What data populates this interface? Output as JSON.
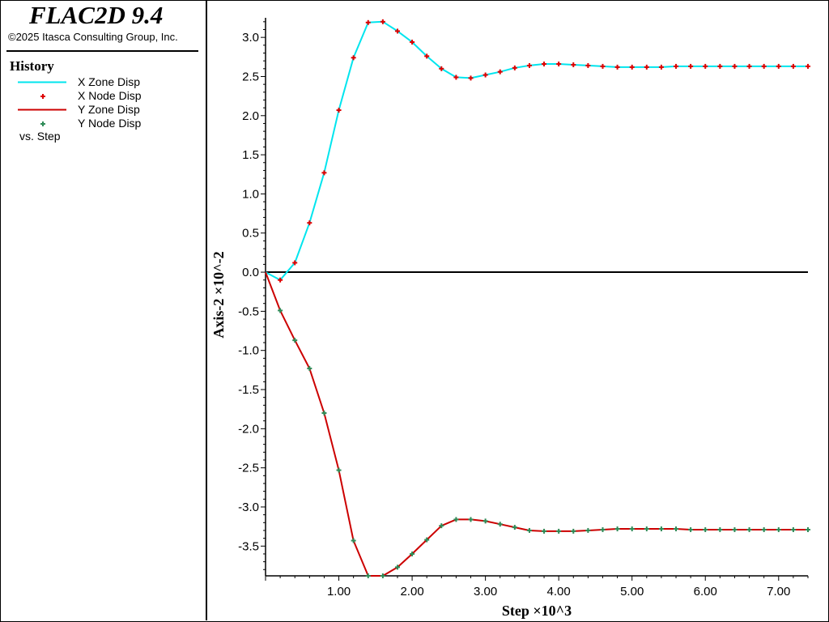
{
  "app": {
    "title": "FLAC2D 9.4",
    "copyright": "©2025 Itasca Consulting Group, Inc."
  },
  "legend": {
    "title": "History",
    "items": [
      {
        "label": "X Zone Disp",
        "style": "line",
        "color": "#00e5ee"
      },
      {
        "label": "X Node Disp",
        "style": "marker",
        "color": "#dd0000"
      },
      {
        "label": "Y Zone Disp",
        "style": "line",
        "color": "#cc0000"
      },
      {
        "label": "Y Node Disp",
        "style": "marker",
        "color": "#2e8b57"
      }
    ],
    "footer": "vs. Step"
  },
  "chart_data": {
    "type": "line",
    "xlabel": "Step ×10^3",
    "ylabel": "Axis-2 ×10^-2",
    "xlim": [
      0,
      7.4
    ],
    "ylim": [
      -3.88,
      3.25
    ],
    "xticks": [
      "1.00",
      "2.00",
      "3.00",
      "4.00",
      "5.00",
      "6.00",
      "7.00"
    ],
    "yticks": [
      "3.0",
      "2.5",
      "2.0",
      "1.5",
      "1.0",
      "0.5",
      "0.0",
      "-0.5",
      "-1.0",
      "-1.5",
      "-2.0",
      "-2.5",
      "-3.0",
      "-3.5"
    ],
    "grid": false,
    "legend_position": "left-panel",
    "x": [
      0,
      0.2,
      0.4,
      0.6,
      0.8,
      1.0,
      1.2,
      1.4,
      1.6,
      1.8,
      2.0,
      2.2,
      2.4,
      2.6,
      2.8,
      3.0,
      3.2,
      3.4,
      3.6,
      3.8,
      4.0,
      4.2,
      4.4,
      4.6,
      4.8,
      5.0,
      5.2,
      5.4,
      5.6,
      5.8,
      6.0,
      6.2,
      6.4,
      6.6,
      6.8,
      7.0,
      7.2,
      7.4
    ],
    "series": [
      {
        "name": "X Zone Disp",
        "kind": "line",
        "color": "#00e5ee",
        "values": [
          0.0,
          -0.1,
          0.12,
          0.63,
          1.27,
          2.07,
          2.74,
          3.19,
          3.2,
          3.08,
          2.94,
          2.76,
          2.6,
          2.49,
          2.48,
          2.52,
          2.56,
          2.61,
          2.64,
          2.66,
          2.66,
          2.65,
          2.64,
          2.63,
          2.62,
          2.62,
          2.62,
          2.62,
          2.63,
          2.63,
          2.63,
          2.63,
          2.63,
          2.63,
          2.63,
          2.63,
          2.63,
          2.63
        ]
      },
      {
        "name": "X Node Disp",
        "kind": "marker",
        "color": "#dd0000",
        "values": [
          0.0,
          -0.1,
          0.12,
          0.63,
          1.27,
          2.07,
          2.74,
          3.19,
          3.2,
          3.08,
          2.94,
          2.76,
          2.6,
          2.49,
          2.48,
          2.52,
          2.56,
          2.61,
          2.64,
          2.66,
          2.66,
          2.65,
          2.64,
          2.63,
          2.62,
          2.62,
          2.62,
          2.62,
          2.63,
          2.63,
          2.63,
          2.63,
          2.63,
          2.63,
          2.63,
          2.63,
          2.63,
          2.63
        ]
      },
      {
        "name": "Y Zone Disp",
        "kind": "line",
        "color": "#cc0000",
        "values": [
          0.0,
          -0.49,
          -0.87,
          -1.23,
          -1.8,
          -2.53,
          -3.43,
          -3.88,
          -3.88,
          -3.77,
          -3.6,
          -3.42,
          -3.24,
          -3.16,
          -3.16,
          -3.18,
          -3.22,
          -3.26,
          -3.3,
          -3.31,
          -3.31,
          -3.31,
          -3.3,
          -3.29,
          -3.28,
          -3.28,
          -3.28,
          -3.28,
          -3.28,
          -3.29,
          -3.29,
          -3.29,
          -3.29,
          -3.29,
          -3.29,
          -3.29,
          -3.29,
          -3.29
        ]
      },
      {
        "name": "Y Node Disp",
        "kind": "marker",
        "color": "#2e8b57",
        "values": [
          0.0,
          -0.49,
          -0.87,
          -1.23,
          -1.8,
          -2.53,
          -3.43,
          -3.88,
          -3.88,
          -3.77,
          -3.6,
          -3.42,
          -3.24,
          -3.16,
          -3.16,
          -3.18,
          -3.22,
          -3.26,
          -3.3,
          -3.31,
          -3.31,
          -3.31,
          -3.3,
          -3.29,
          -3.28,
          -3.28,
          -3.28,
          -3.28,
          -3.28,
          -3.29,
          -3.29,
          -3.29,
          -3.29,
          -3.29,
          -3.29,
          -3.29,
          -3.29,
          -3.29
        ]
      }
    ]
  }
}
